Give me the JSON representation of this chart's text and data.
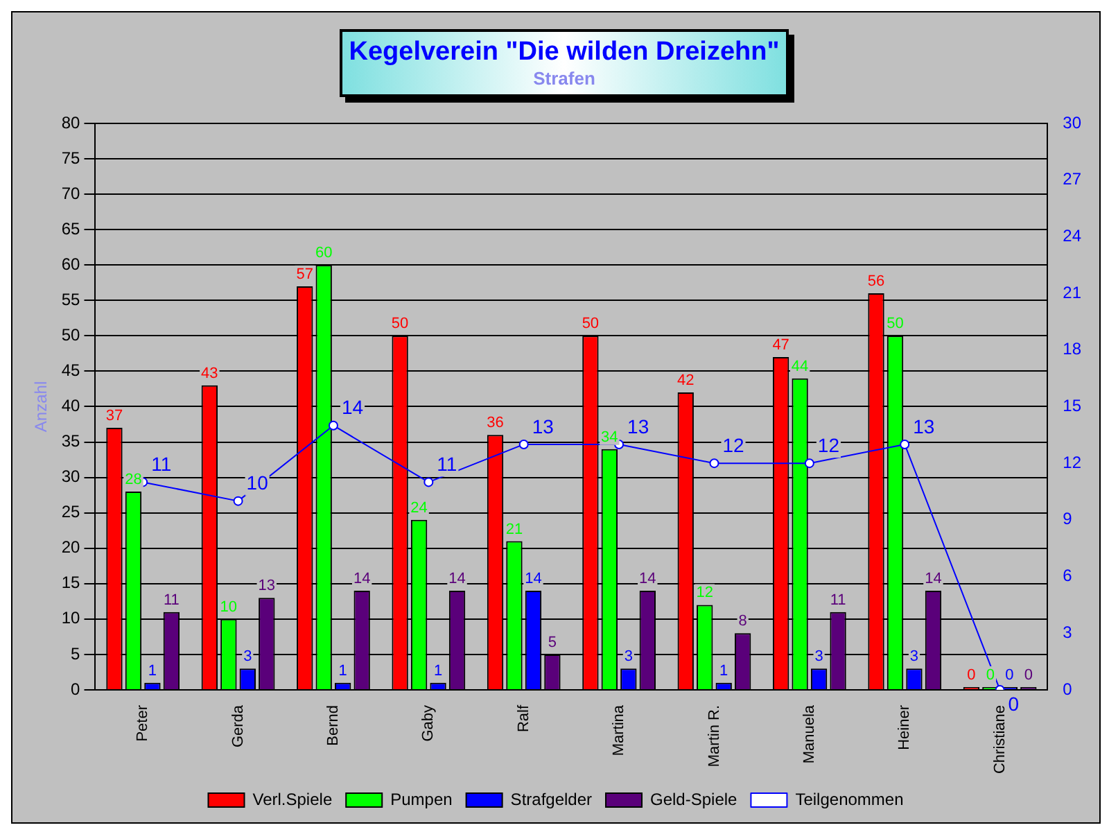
{
  "chart_data": {
    "type": "bar",
    "title": "Kegelverein \"Die wilden Dreizehn\"",
    "subtitle": "Strafen",
    "ylabel": "Anzahl",
    "categories": [
      "Peter",
      "Gerda",
      "Bernd",
      "Gaby",
      "Ralf",
      "Martina",
      "Martin R.",
      "Manuela",
      "Heiner",
      "Christiane"
    ],
    "series": [
      {
        "name": "Verl.Spiele",
        "color": "#ff0000",
        "values": [
          37,
          43,
          57,
          50,
          36,
          50,
          42,
          47,
          56,
          0
        ]
      },
      {
        "name": "Pumpen",
        "color": "#00ff00",
        "values": [
          28,
          10,
          60,
          24,
          21,
          34,
          12,
          44,
          50,
          0
        ]
      },
      {
        "name": "Strafgelder",
        "color": "#0000ff",
        "values": [
          1,
          3,
          1,
          1,
          14,
          3,
          1,
          3,
          3,
          0
        ]
      },
      {
        "name": "Geld-Spiele",
        "color": "#5a007a",
        "values": [
          11,
          13,
          14,
          14,
          5,
          14,
          8,
          11,
          14,
          0
        ]
      },
      {
        "name": "Teilgenommen",
        "type": "line",
        "axis": "y2",
        "color": "#0000ff",
        "marker": "circle",
        "values": [
          11,
          10,
          14,
          11,
          13,
          13,
          12,
          12,
          13,
          0
        ]
      }
    ],
    "ylim": [
      0,
      80
    ],
    "yticks": [
      0,
      5,
      10,
      15,
      20,
      25,
      30,
      35,
      40,
      45,
      50,
      55,
      60,
      65,
      70,
      75,
      80
    ],
    "y2lim": [
      0,
      30
    ],
    "y2ticks": [
      0,
      3,
      6,
      9,
      12,
      15,
      18,
      21,
      24,
      27,
      30
    ],
    "grid": "y",
    "legend": "bottom",
    "data_labels": true
  }
}
